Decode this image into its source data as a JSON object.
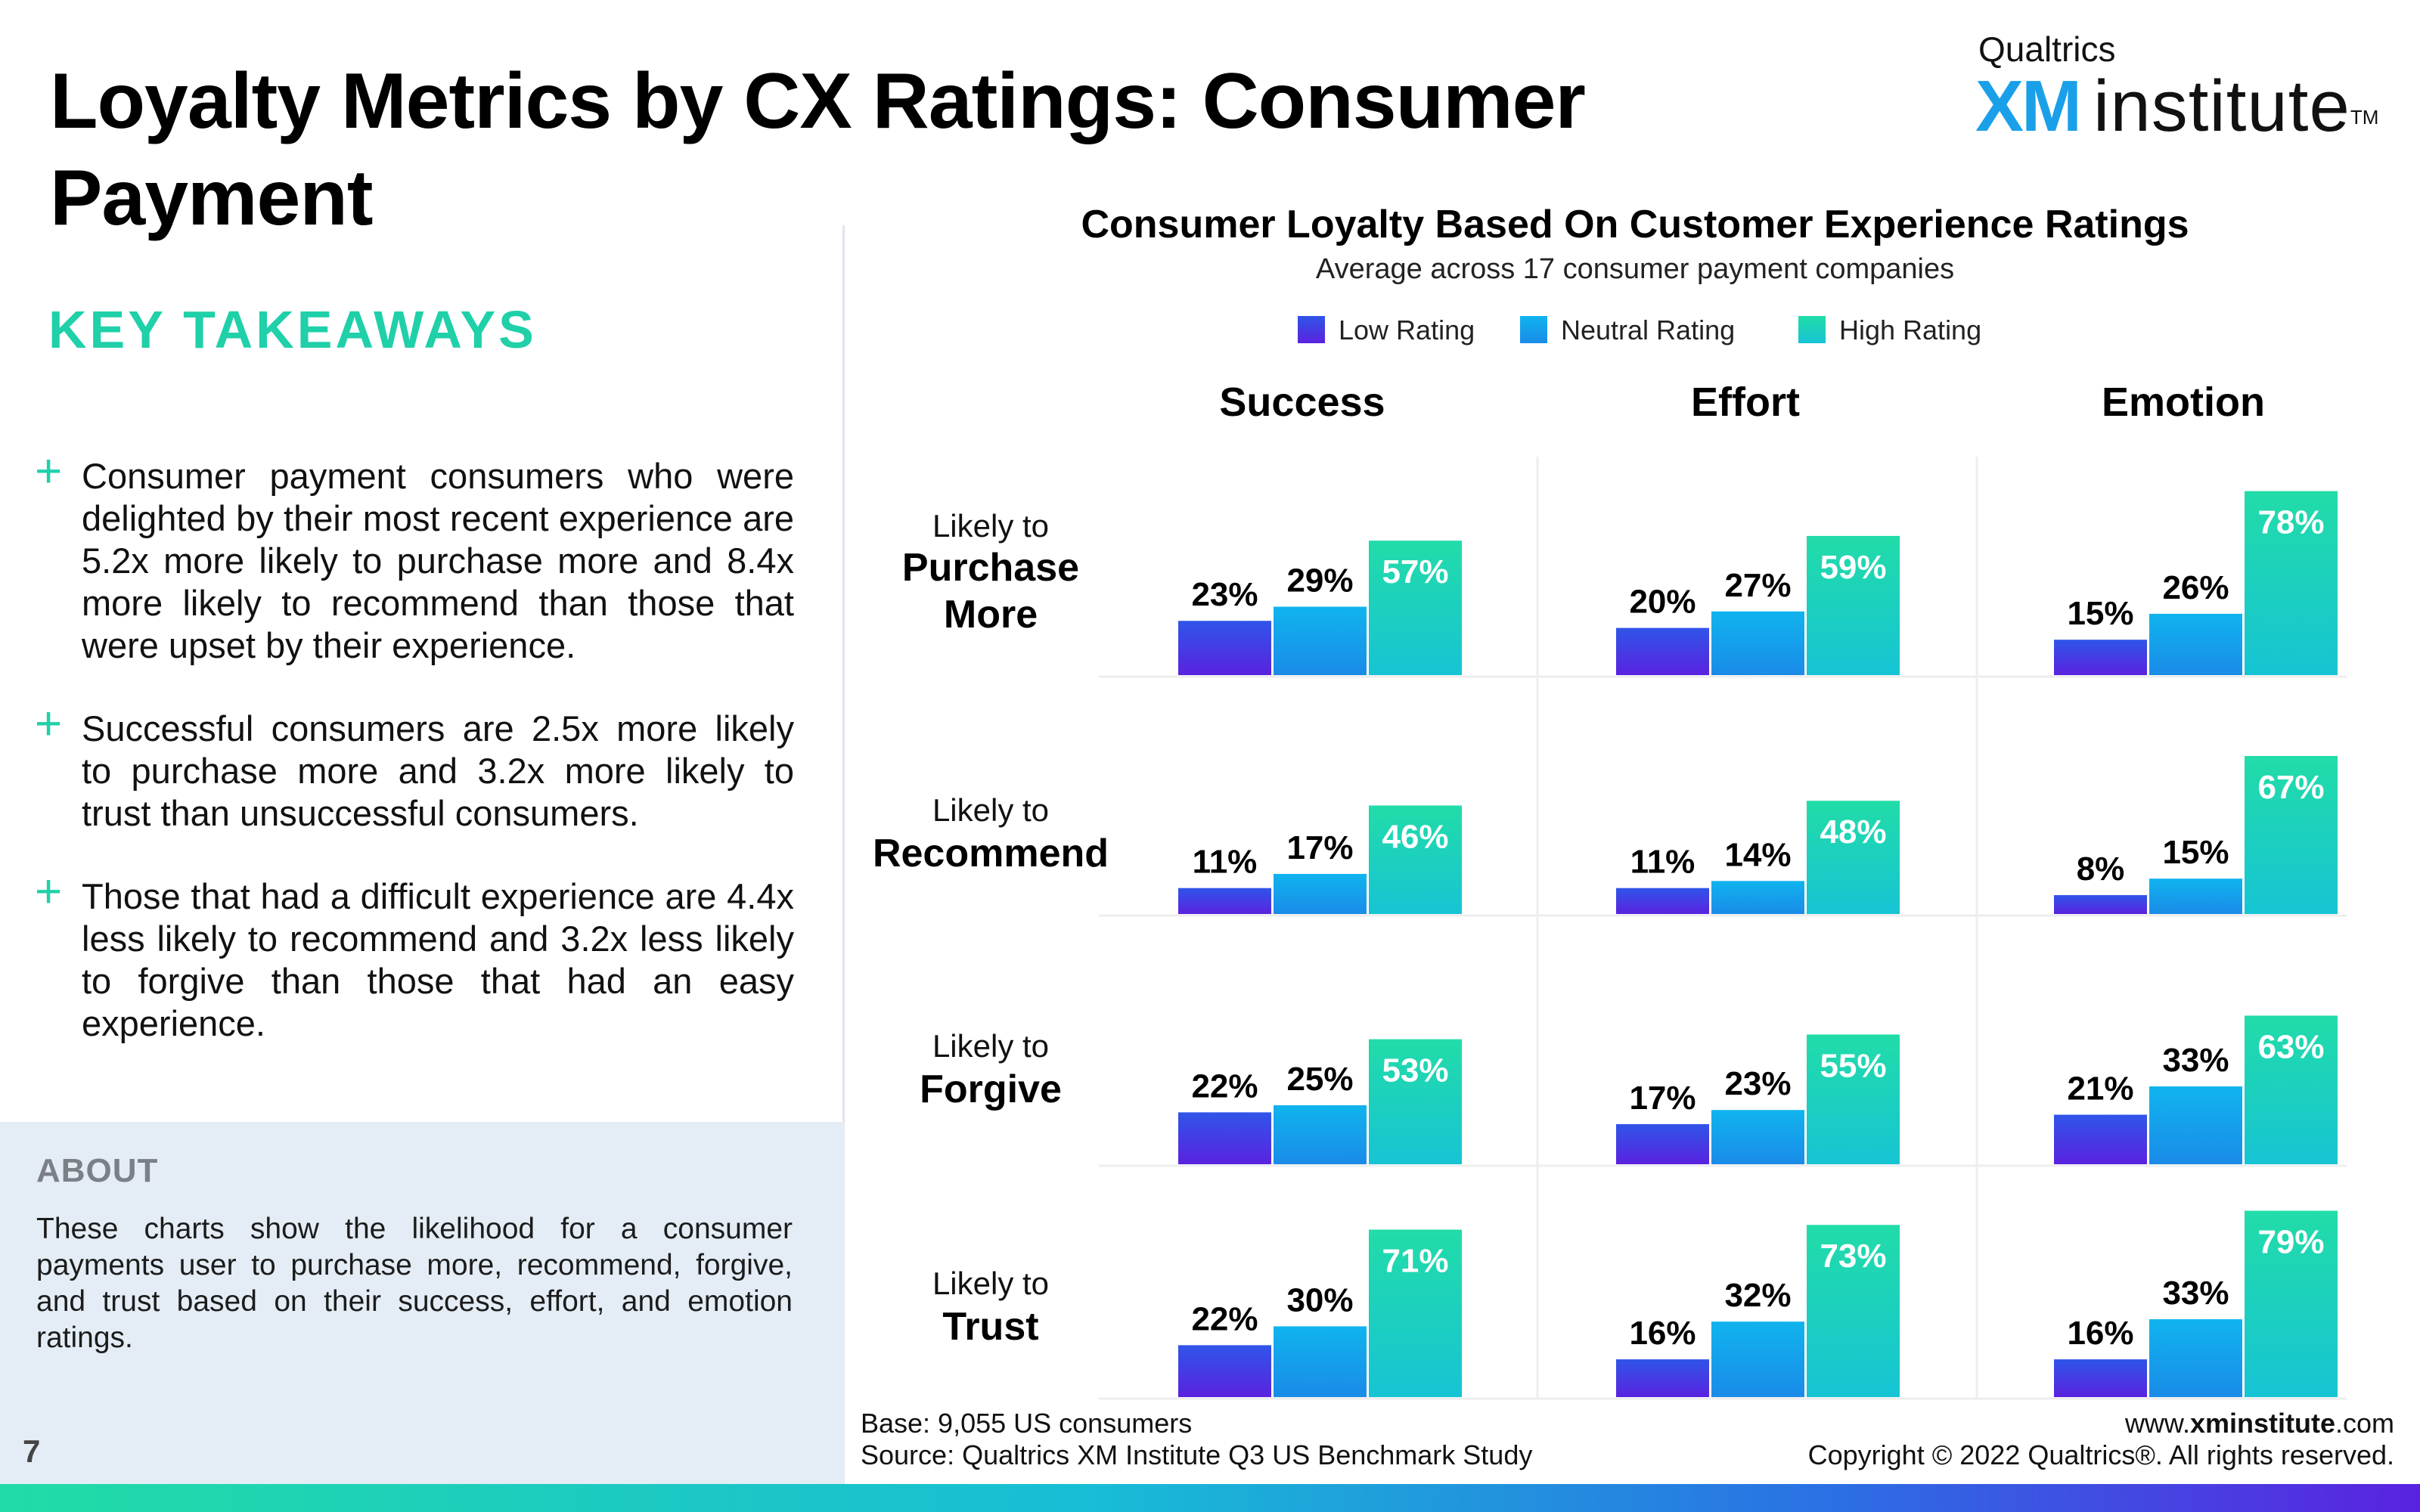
{
  "header": {
    "title": "Loyalty Metrics by CX Ratings: Consumer Payment",
    "brand_top": "Qualtrics",
    "brand_xm": "XM",
    "brand_institute": "institute",
    "brand_tm": "TM"
  },
  "takeaways": {
    "heading": "KEY TAKEAWAYS",
    "bullet_symbol": "+",
    "items": [
      "Consumer payment consumers who were delighted by their most recent experience are 5.2x more likely to purchase more and 8.4x more likely to recommend than those that were upset by their experience.",
      "Successful consumers are 2.5x more likely to purchase more and 3.2x more likely to trust than unsuccessful consumers.",
      "Those that had a difficult experience are 4.4x less likely to recommend and 3.2x less likely to forgive than those that had an easy experience."
    ]
  },
  "about": {
    "title": "ABOUT",
    "text": "These charts show the likelihood for a consumer payments user to purchase more, recommend, forgive, and trust based on their success, effort, and emotion ratings."
  },
  "page_number": "7",
  "footer": {
    "base": "Base: 9,055 US consumers",
    "source": "Source: Qualtrics XM Institute Q3 US Benchmark Study",
    "url_prefix": "www.",
    "url_bold": "xminstitute",
    "url_suffix": ".com",
    "copyright": "Copyright © 2022 Qualtrics®. All rights reserved."
  },
  "colors": {
    "accent": "#1fd0a9",
    "low_rating": "#4a2ee0",
    "neutral_rating": "#17a2ec",
    "high_rating": "#21d6ae"
  },
  "chart_data": {
    "type": "bar",
    "title": "Consumer Loyalty Based On Customer Experience Ratings",
    "subtitle": "Average across 17 consumer payment companies",
    "legend": [
      "Low Rating",
      "Neutral Rating",
      "High Rating"
    ],
    "legend_position": "top",
    "columns": [
      "Success",
      "Effort",
      "Emotion"
    ],
    "rows": [
      {
        "prefix": "Likely to",
        "label": "Purchase More"
      },
      {
        "prefix": "Likely to",
        "label": "Recommend"
      },
      {
        "prefix": "Likely to",
        "label": "Forgive"
      },
      {
        "prefix": "Likely to",
        "label": "Trust"
      }
    ],
    "unit": "%",
    "values": [
      [
        [
          23,
          29,
          57
        ],
        [
          20,
          27,
          59
        ],
        [
          15,
          26,
          78
        ]
      ],
      [
        [
          11,
          17,
          46
        ],
        [
          11,
          14,
          48
        ],
        [
          8,
          15,
          67
        ]
      ],
      [
        [
          22,
          25,
          53
        ],
        [
          17,
          23,
          55
        ],
        [
          21,
          33,
          63
        ]
      ],
      [
        [
          22,
          30,
          71
        ],
        [
          16,
          32,
          73
        ],
        [
          16,
          33,
          79
        ]
      ]
    ]
  }
}
